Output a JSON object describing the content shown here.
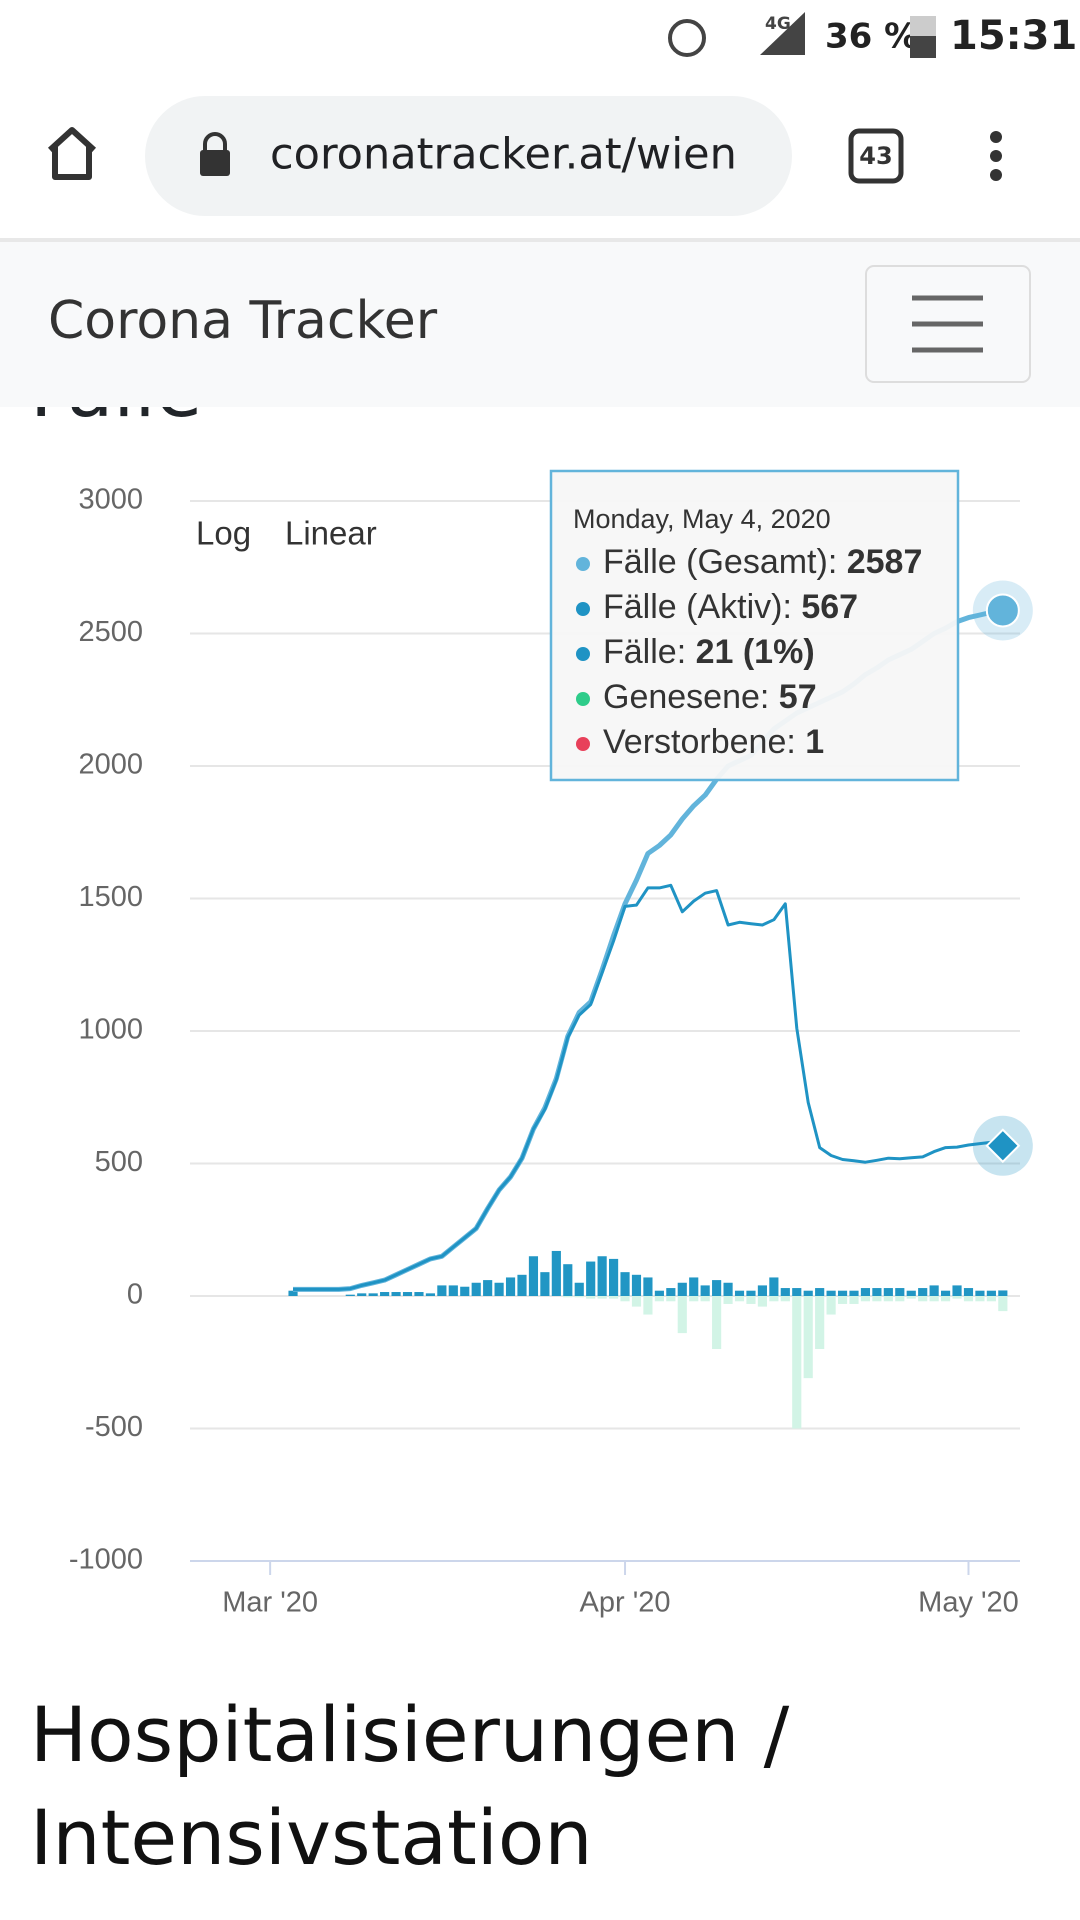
{
  "status_bar": {
    "network": "4G",
    "battery": "36 %",
    "time": "15:31"
  },
  "browser": {
    "url": "coronatracker.at/wien",
    "tabs": "43"
  },
  "navbar": {
    "brand": "Corona Tracker"
  },
  "section_title": "Fälle",
  "next_section_title": [
    "Hospitalisierungen /",
    "Intensivstation"
  ],
  "chart_data": {
    "type": "combo",
    "scale_buttons": [
      "Log",
      "Linear"
    ],
    "log_scale": false,
    "grid": true,
    "x": [
      2,
      3,
      4,
      5,
      6,
      7,
      8,
      9,
      10,
      11,
      12,
      13,
      14,
      15,
      16,
      17,
      18,
      19,
      20,
      21,
      22,
      23,
      24,
      25,
      26,
      27,
      28,
      29,
      30,
      31,
      32,
      33,
      34,
      35,
      36,
      37,
      38,
      39,
      40,
      41,
      42,
      43,
      44,
      45,
      46,
      47,
      48,
      49,
      50,
      51,
      52,
      53,
      54,
      55,
      56,
      57,
      58,
      59,
      60,
      61,
      62,
      63,
      64
    ],
    "xlim": [
      -7,
      65.5
    ],
    "xticks": [
      {
        "value": 0,
        "label": "Mar '20"
      },
      {
        "value": 31,
        "label": "Apr '20"
      },
      {
        "value": 61,
        "label": "May '20"
      }
    ],
    "ylim": [
      -1000,
      3000
    ],
    "yticks": [
      -1000,
      -500,
      0,
      500,
      1000,
      1500,
      2000,
      2500,
      3000
    ],
    "series": [
      {
        "type": "bar",
        "color": "#d2f4e6",
        "values": [
          0,
          0,
          0,
          0,
          0,
          0,
          0,
          0,
          0,
          0,
          0,
          0,
          0,
          0,
          0,
          0,
          0,
          0,
          0,
          0,
          0,
          0,
          0,
          0,
          -5,
          -5,
          -10,
          -10,
          -10,
          -20,
          -40,
          -70,
          -20,
          -20,
          -140,
          -20,
          -20,
          -200,
          -30,
          -20,
          -30,
          -40,
          -20,
          -20,
          -500,
          -310,
          -200,
          -70,
          -30,
          -30,
          -20,
          -20,
          -20,
          -20,
          -10,
          -20,
          -20,
          -20,
          -10,
          -20,
          -20,
          -20,
          -57
        ]
      },
      {
        "type": "bar",
        "color": "#2196c4",
        "values": [
          20,
          0,
          0,
          0,
          0,
          5,
          10,
          10,
          15,
          15,
          15,
          15,
          10,
          40,
          40,
          35,
          50,
          60,
          50,
          70,
          80,
          150,
          90,
          170,
          120,
          50,
          130,
          150,
          140,
          90,
          80,
          70,
          20,
          30,
          50,
          70,
          40,
          60,
          50,
          20,
          20,
          40,
          70,
          30,
          30,
          20,
          30,
          20,
          20,
          20,
          30,
          30,
          30,
          30,
          20,
          30,
          40,
          20,
          40,
          30,
          20,
          20,
          21
        ]
      },
      {
        "type": "line",
        "color": "#62b4db",
        "width": 5,
        "marker": "circle",
        "values": [
          25,
          25,
          25,
          25,
          25,
          28,
          40,
          50,
          60,
          80,
          100,
          120,
          140,
          150,
          185,
          220,
          255,
          330,
          400,
          450,
          520,
          630,
          710,
          820,
          980,
          1070,
          1110,
          1230,
          1360,
          1480,
          1570,
          1670,
          1700,
          1740,
          1800,
          1850,
          1890,
          1950,
          2000,
          2020,
          2040,
          2090,
          2140,
          2170,
          2200,
          2220,
          2240,
          2260,
          2280,
          2310,
          2345,
          2370,
          2400,
          2420,
          2440,
          2470,
          2500,
          2520,
          2545,
          2560,
          2570,
          2580,
          2587
        ]
      },
      {
        "type": "line",
        "color": "#1f93c4",
        "width": 3,
        "marker": "diamond",
        "values": [
          25,
          25,
          25,
          25,
          25,
          28,
          40,
          50,
          60,
          80,
          100,
          120,
          140,
          150,
          185,
          220,
          255,
          330,
          400,
          450,
          520,
          630,
          705,
          815,
          975,
          1060,
          1100,
          1220,
          1340,
          1470,
          1475,
          1540,
          1540,
          1550,
          1450,
          1490,
          1520,
          1530,
          1400,
          1410,
          1405,
          1400,
          1420,
          1480,
          1010,
          730,
          560,
          530,
          515,
          510,
          505,
          512,
          520,
          518,
          522,
          525,
          545,
          560,
          562,
          570,
          575,
          580,
          567
        ]
      }
    ],
    "tooltip": {
      "date": "Monday, May 4, 2020",
      "items": [
        {
          "name": "Fälle (Gesamt):",
          "value": "2587",
          "color": "#62b4db"
        },
        {
          "name": "Fälle (Aktiv):",
          "value": "567",
          "color": "#1f93c4"
        },
        {
          "name": "Fälle:",
          "value": "21 (1%)",
          "color": "#1f93c4"
        },
        {
          "name": "Genesene:",
          "value": "57",
          "color": "#2ecc8a"
        },
        {
          "name": "Verstorbene:",
          "value": "1",
          "color": "#e8405a"
        }
      ]
    }
  }
}
